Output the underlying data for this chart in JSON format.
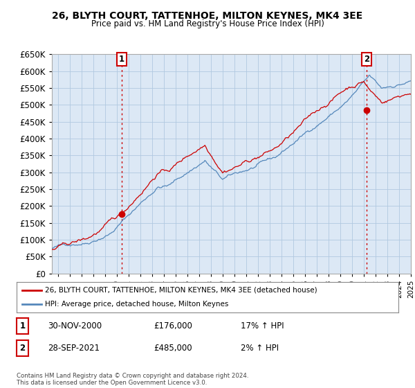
{
  "title": "26, BLYTH COURT, TATTENHOE, MILTON KEYNES, MK4 3EE",
  "subtitle": "Price paid vs. HM Land Registry's House Price Index (HPI)",
  "background_color": "#ffffff",
  "plot_bg_color": "#dce8f5",
  "grid_color": "#b0c8e0",
  "red_line_color": "#cc0000",
  "blue_line_color": "#5588bb",
  "dashed_color": "#cc0000",
  "ylim_min": 0,
  "ylim_max": 650000,
  "ytick_step": 50000,
  "xmin": 1995.0,
  "xmax": 2025.5,
  "sale1_x": 2000.92,
  "sale1_price": 176000,
  "sale1_label": "1",
  "sale1_date": "30-NOV-2000",
  "sale1_amount": "£176,000",
  "sale1_hpi": "17% ↑ HPI",
  "sale2_x": 2021.75,
  "sale2_price": 485000,
  "sale2_label": "2",
  "sale2_date": "28-SEP-2021",
  "sale2_amount": "£485,000",
  "sale2_hpi": "2% ↑ HPI",
  "legend_label_red": "26, BLYTH COURT, TATTENHOE, MILTON KEYNES, MK4 3EE (detached house)",
  "legend_label_blue": "HPI: Average price, detached house, Milton Keynes",
  "footer_text": "Contains HM Land Registry data © Crown copyright and database right 2024.\nThis data is licensed under the Open Government Licence v3.0."
}
